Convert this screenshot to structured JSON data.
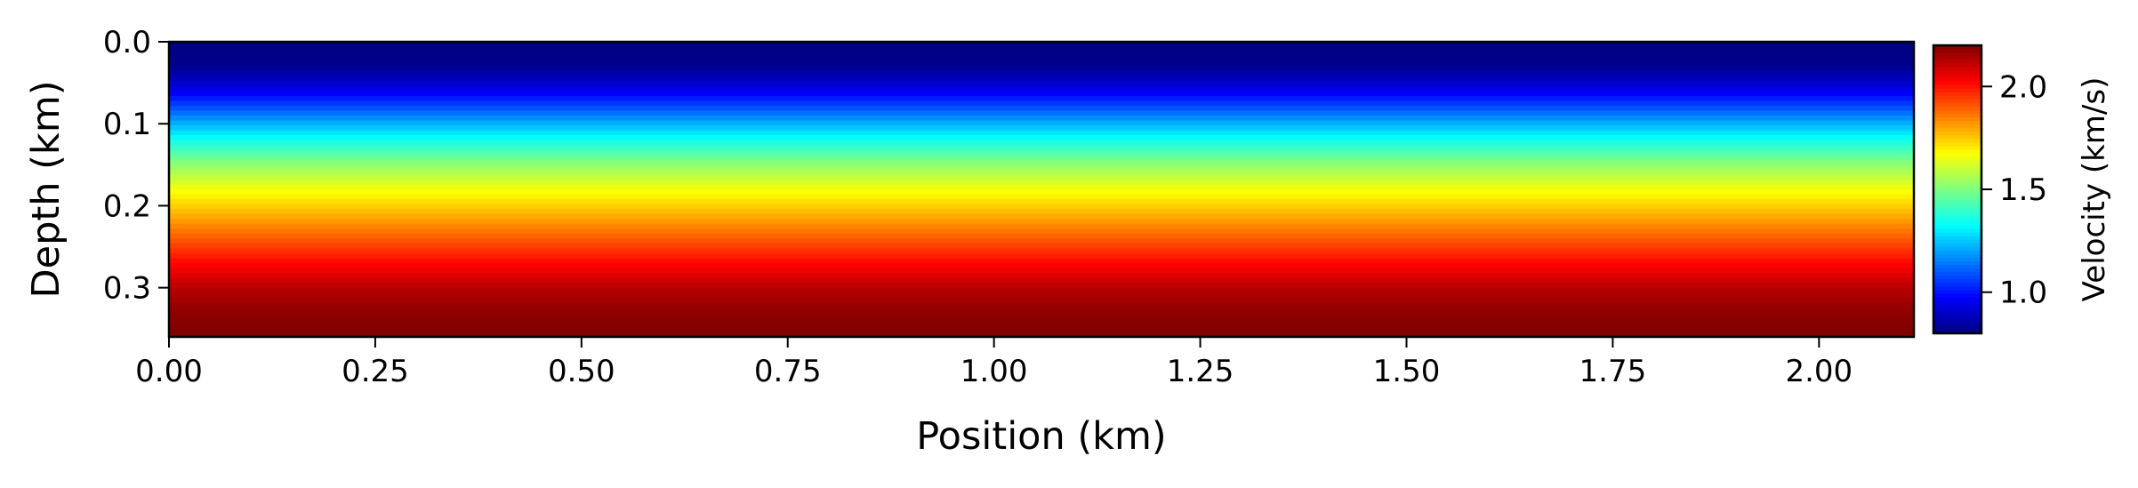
{
  "chart_data": {
    "type": "heatmap",
    "title": "",
    "xlabel": "Position (km)",
    "ylabel": "Depth (km)",
    "xlim": [
      0.0,
      2.115
    ],
    "ylim": [
      0.0,
      0.36
    ],
    "y_inverted": true,
    "xticks": [
      0.0,
      0.25,
      0.5,
      0.75,
      1.0,
      1.25,
      1.5,
      1.75,
      2.0
    ],
    "xtick_labels": [
      "0.00",
      "0.25",
      "0.50",
      "0.75",
      "1.00",
      "1.25",
      "1.50",
      "1.75",
      "2.00"
    ],
    "yticks": [
      0.0,
      0.1,
      0.2,
      0.3
    ],
    "ytick_labels": [
      "0.0",
      "0.1",
      "0.2",
      "0.3"
    ],
    "colormap": "jet",
    "field": {
      "description_of_values": "velocity varies with depth only, constant along position",
      "depth_km": [
        0.0,
        0.03,
        0.06,
        0.09,
        0.12,
        0.15,
        0.18,
        0.21,
        0.24,
        0.27,
        0.3,
        0.33,
        0.36
      ],
      "velocity_km_s": [
        0.8,
        0.82,
        0.95,
        1.15,
        1.35,
        1.52,
        1.66,
        1.78,
        1.9,
        2.02,
        2.12,
        2.18,
        2.2
      ]
    },
    "colorbar": {
      "label": "Velocity (km/s)",
      "vmin": 0.8,
      "vmax": 2.2,
      "ticks": [
        1.0,
        1.5,
        2.0
      ],
      "tick_labels": [
        "1.0",
        "1.5",
        "2.0"
      ]
    },
    "grid": false,
    "legend": "none"
  }
}
